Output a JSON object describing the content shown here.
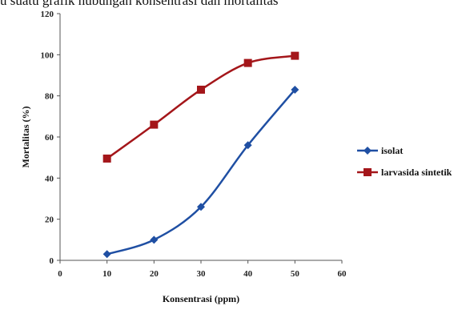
{
  "header": {
    "caption_fragment": "u suatu grafik hubungan konsentrasi dan mortalitas"
  },
  "chart_data": {
    "type": "line",
    "x": [
      10,
      20,
      30,
      40,
      50
    ],
    "series": [
      {
        "name": "isolat",
        "values": [
          3,
          10,
          26,
          56,
          83
        ],
        "color": "#1f4fa3",
        "marker": "diamond"
      },
      {
        "name": "larvasida sintetik",
        "values": [
          49.5,
          66,
          83,
          96,
          99.5
        ],
        "color": "#a4161a",
        "marker": "square"
      }
    ],
    "xlabel": "Konsentrasi (ppm)",
    "ylabel": "Mortalitas (%)",
    "xlim": [
      0,
      60
    ],
    "ylim": [
      0,
      120
    ],
    "xticks": [
      "0",
      "10",
      "20",
      "30",
      "40",
      "50",
      "60"
    ],
    "yticks": [
      "0",
      "20",
      "40",
      "60",
      "80",
      "100",
      "120"
    ],
    "grid": false,
    "legend": "right"
  }
}
